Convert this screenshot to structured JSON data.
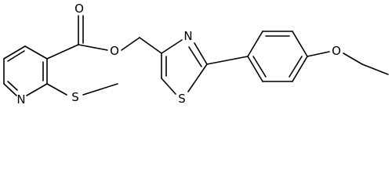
{
  "atoms": [
    {
      "label": "O"
    },
    {
      "label": "O"
    },
    {
      "label": "N"
    },
    {
      "label": "S"
    },
    {
      "label": "N"
    },
    {
      "label": "S"
    },
    {
      "label": "O"
    }
  ]
}
